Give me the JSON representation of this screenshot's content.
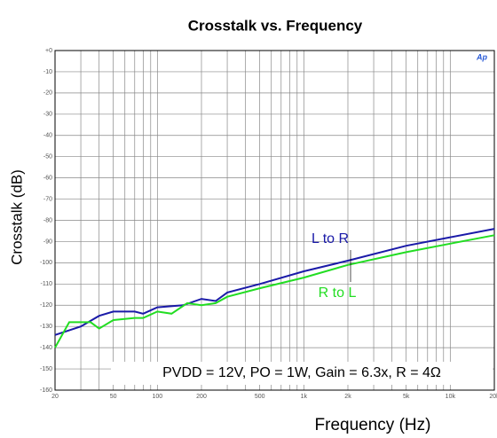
{
  "chart_data": {
    "type": "line",
    "title": "Crosstalk vs. Frequency",
    "x_label": "Frequency (Hz)",
    "y_label": "Crosstalk (dB)",
    "log_x": true,
    "grid": true,
    "xlim": [
      20,
      20000
    ],
    "xticks": [
      20,
      50,
      100,
      200,
      500,
      {
        "value": 1000,
        "label": "1k"
      },
      {
        "value": 2000,
        "label": "2k"
      },
      {
        "value": 5000,
        "label": "5k"
      },
      {
        "value": 10000,
        "label": "10k"
      },
      {
        "value": 20000,
        "label": "20k"
      }
    ],
    "x_minor_ticks": [
      30,
      40,
      60,
      70,
      80,
      90,
      300,
      400,
      600,
      700,
      800,
      900,
      3000,
      4000,
      6000,
      7000,
      8000,
      9000
    ],
    "ylim": [
      -160,
      0
    ],
    "yticks": [
      {
        "value": 0,
        "label": "+0"
      },
      -10,
      -20,
      -30,
      -40,
      -50,
      -60,
      -70,
      -80,
      -90,
      -100,
      -110,
      -120,
      -130,
      -140,
      -150,
      -160
    ],
    "series": [
      {
        "name": "L to R",
        "color": "#1a1aa8",
        "x": [
          20,
          30,
          40,
          50,
          70,
          80,
          100,
          150,
          200,
          250,
          300,
          500,
          1000,
          2000,
          5000,
          10000,
          20000
        ],
        "values": [
          -134,
          -130,
          -125,
          -123,
          -123,
          -124,
          -121,
          -120,
          -117,
          -118,
          -114,
          -110,
          -104,
          -99,
          -92,
          -88,
          -84
        ]
      },
      {
        "name": "R to L",
        "color": "#22dd22",
        "x": [
          20,
          25,
          35,
          40,
          50,
          70,
          80,
          100,
          125,
          160,
          200,
          250,
          300,
          500,
          1000,
          2000,
          5000,
          10000,
          20000
        ],
        "values": [
          -140,
          -128,
          -128,
          -131,
          -127,
          -126,
          -126,
          -123,
          -124,
          -119,
          -120,
          -119,
          -116,
          -112,
          -107,
          -101,
          -95,
          -91,
          -87
        ]
      }
    ],
    "annotations": [
      "PVDD = 12V, PO = 1W, Gain = 6.3x, R = 4Ω",
      "Ap"
    ]
  }
}
